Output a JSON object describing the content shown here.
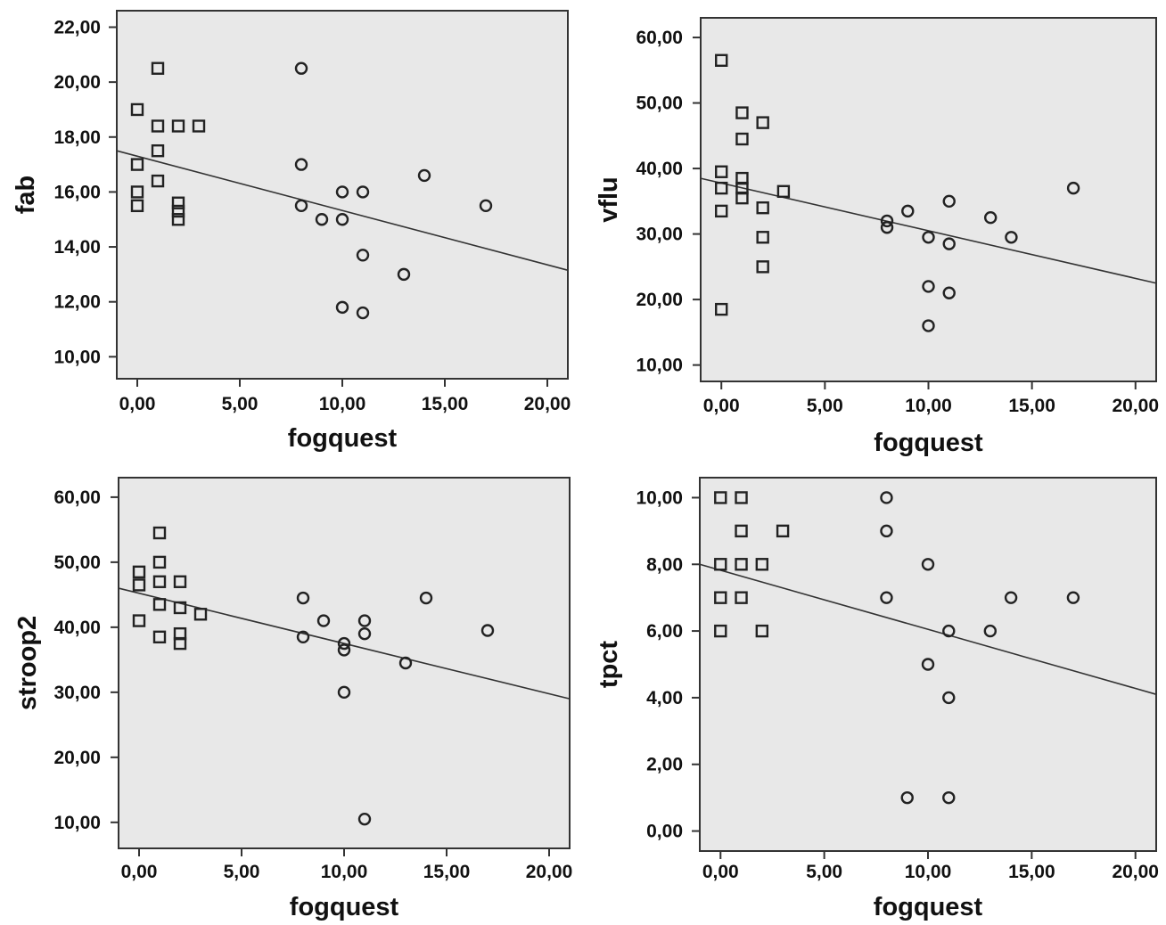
{
  "chart_data": [
    {
      "type": "scatter",
      "xlabel": "fogquest",
      "ylabel": "fab",
      "xlim": [
        -1.0,
        21.0
      ],
      "ylim": [
        9.2,
        22.6
      ],
      "xticks": [
        0,
        5,
        10,
        15,
        20
      ],
      "xtick_labels": [
        "0,00",
        "5,00",
        "10,00",
        "15,00",
        "20,00"
      ],
      "yticks": [
        10,
        12,
        14,
        16,
        18,
        20,
        22
      ],
      "ytick_labels": [
        "10,00",
        "12,00",
        "14,00",
        "16,00",
        "18,00",
        "20,00",
        "22,00"
      ],
      "series": [
        {
          "marker": "square",
          "points": [
            [
              0,
              19
            ],
            [
              0,
              17
            ],
            [
              0,
              16
            ],
            [
              0,
              15.5
            ],
            [
              1,
              20.5
            ],
            [
              1,
              18.4
            ],
            [
              1,
              17.5
            ],
            [
              1,
              16.4
            ],
            [
              2,
              18.4
            ],
            [
              2,
              15.6
            ],
            [
              2,
              15.3
            ],
            [
              2,
              15
            ],
            [
              3,
              18.4
            ]
          ]
        },
        {
          "marker": "circle",
          "points": [
            [
              8,
              20.5
            ],
            [
              8,
              17
            ],
            [
              8,
              15.5
            ],
            [
              9,
              15
            ],
            [
              10,
              16
            ],
            [
              10,
              15
            ],
            [
              10,
              11.8
            ],
            [
              11,
              16
            ],
            [
              11,
              13.7
            ],
            [
              11,
              11.6
            ],
            [
              13,
              13
            ],
            [
              14,
              16.6
            ],
            [
              17,
              15.5
            ]
          ]
        }
      ],
      "fit_line": {
        "x": [
          -1.0,
          21.0
        ],
        "y": [
          17.5,
          13.15
        ]
      }
    },
    {
      "type": "scatter",
      "xlabel": "fogquest",
      "ylabel": "vflu",
      "xlim": [
        -1.0,
        21.0
      ],
      "ylim": [
        7.5,
        63.0
      ],
      "xticks": [
        0,
        5,
        10,
        15,
        20
      ],
      "xtick_labels": [
        "0,00",
        "5,00",
        "10,00",
        "15,00",
        "20,00"
      ],
      "yticks": [
        10,
        20,
        30,
        40,
        50,
        60
      ],
      "ytick_labels": [
        "10,00",
        "20,00",
        "30,00",
        "40,00",
        "50,00",
        "60,00"
      ],
      "series": [
        {
          "marker": "square",
          "points": [
            [
              0,
              56.5
            ],
            [
              0,
              39.5
            ],
            [
              0,
              37
            ],
            [
              0,
              33.5
            ],
            [
              0,
              18.5
            ],
            [
              1,
              48.5
            ],
            [
              1,
              44.5
            ],
            [
              1,
              38.5
            ],
            [
              1,
              37
            ],
            [
              1,
              35.5
            ],
            [
              2,
              47
            ],
            [
              2,
              34
            ],
            [
              2,
              29.5
            ],
            [
              2,
              25
            ],
            [
              3,
              36.5
            ]
          ]
        },
        {
          "marker": "circle",
          "points": [
            [
              8,
              32
            ],
            [
              8,
              31
            ],
            [
              9,
              33.5
            ],
            [
              10,
              29.5
            ],
            [
              10,
              22
            ],
            [
              10,
              16
            ],
            [
              11,
              35
            ],
            [
              11,
              28.5
            ],
            [
              11,
              21
            ],
            [
              13,
              32.5
            ],
            [
              14,
              29.5
            ],
            [
              17,
              37
            ]
          ]
        }
      ],
      "fit_line": {
        "x": [
          -1.0,
          21.0
        ],
        "y": [
          38.5,
          22.5
        ]
      }
    },
    {
      "type": "scatter",
      "xlabel": "fogquest",
      "ylabel": "stroop2",
      "xlim": [
        -1.0,
        21.0
      ],
      "ylim": [
        6.0,
        63.0
      ],
      "xticks": [
        0,
        5,
        10,
        15,
        20
      ],
      "xtick_labels": [
        "0,00",
        "5,00",
        "10,00",
        "15,00",
        "20,00"
      ],
      "yticks": [
        10,
        20,
        30,
        40,
        50,
        60
      ],
      "ytick_labels": [
        "10,00",
        "20,00",
        "30,00",
        "40,00",
        "50,00",
        "60,00"
      ],
      "series": [
        {
          "marker": "square",
          "points": [
            [
              0,
              48.5
            ],
            [
              0,
              46.5
            ],
            [
              0,
              41
            ],
            [
              1,
              54.5
            ],
            [
              1,
              50
            ],
            [
              1,
              47
            ],
            [
              1,
              43.5
            ],
            [
              1,
              38.5
            ],
            [
              2,
              47
            ],
            [
              2,
              43
            ],
            [
              2,
              39
            ],
            [
              2,
              37.5
            ],
            [
              3,
              42
            ]
          ]
        },
        {
          "marker": "circle",
          "points": [
            [
              8,
              44.5
            ],
            [
              8,
              38.5
            ],
            [
              9,
              41
            ],
            [
              10,
              37.5
            ],
            [
              10,
              36.5
            ],
            [
              10,
              30
            ],
            [
              11,
              41
            ],
            [
              11,
              39
            ],
            [
              11,
              10.5
            ],
            [
              13,
              34.5
            ],
            [
              14,
              44.5
            ],
            [
              17,
              39.5
            ]
          ]
        }
      ],
      "fit_line": {
        "x": [
          -1.0,
          21.0
        ],
        "y": [
          46.0,
          29.0
        ]
      }
    },
    {
      "type": "scatter",
      "xlabel": "fogquest",
      "ylabel": "tpct",
      "xlim": [
        -1.0,
        21.0
      ],
      "ylim": [
        -0.6,
        10.6
      ],
      "xticks": [
        0,
        5,
        10,
        15,
        20
      ],
      "xtick_labels": [
        "0,00",
        "5,00",
        "10,00",
        "15,00",
        "20,00"
      ],
      "yticks": [
        0,
        2,
        4,
        6,
        8,
        10
      ],
      "ytick_labels": [
        "0,00",
        "2,00",
        "4,00",
        "6,00",
        "8,00",
        "10,00"
      ],
      "series": [
        {
          "marker": "square",
          "points": [
            [
              0,
              10
            ],
            [
              0,
              8
            ],
            [
              0,
              7
            ],
            [
              0,
              6
            ],
            [
              1,
              10
            ],
            [
              1,
              9
            ],
            [
              1,
              8
            ],
            [
              1,
              7
            ],
            [
              2,
              8
            ],
            [
              2,
              6
            ],
            [
              3,
              9
            ]
          ]
        },
        {
          "marker": "circle",
          "points": [
            [
              8,
              10
            ],
            [
              8,
              9
            ],
            [
              8,
              7
            ],
            [
              9,
              1
            ],
            [
              10,
              8
            ],
            [
              10,
              5
            ],
            [
              11,
              6
            ],
            [
              11,
              4
            ],
            [
              11,
              1
            ],
            [
              13,
              6
            ],
            [
              14,
              7
            ],
            [
              17,
              7
            ]
          ]
        }
      ],
      "fit_line": {
        "x": [
          -1.0,
          21.0
        ],
        "y": [
          8.0,
          4.1
        ]
      }
    }
  ]
}
